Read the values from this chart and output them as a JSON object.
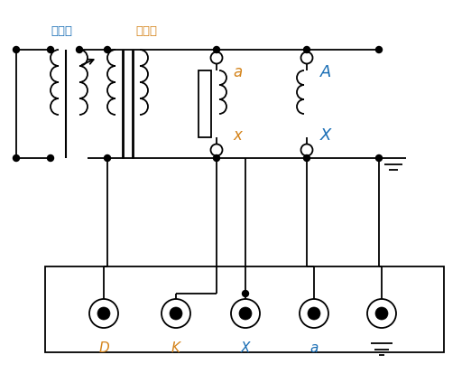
{
  "bg_color": "#ffffff",
  "line_color": "#000000",
  "orange": "#d4831a",
  "blue": "#1a6eb5",
  "label_tiaoyaqi": "调压器",
  "label_shengyaqi": "升压器",
  "label_a": "a",
  "label_x": "x",
  "label_A": "A",
  "label_X": "X",
  "label_D": "D",
  "label_K": "K",
  "label_Xterm": "X",
  "label_aterm": "a",
  "figw": 5.22,
  "figh": 4.24,
  "dpi": 100
}
